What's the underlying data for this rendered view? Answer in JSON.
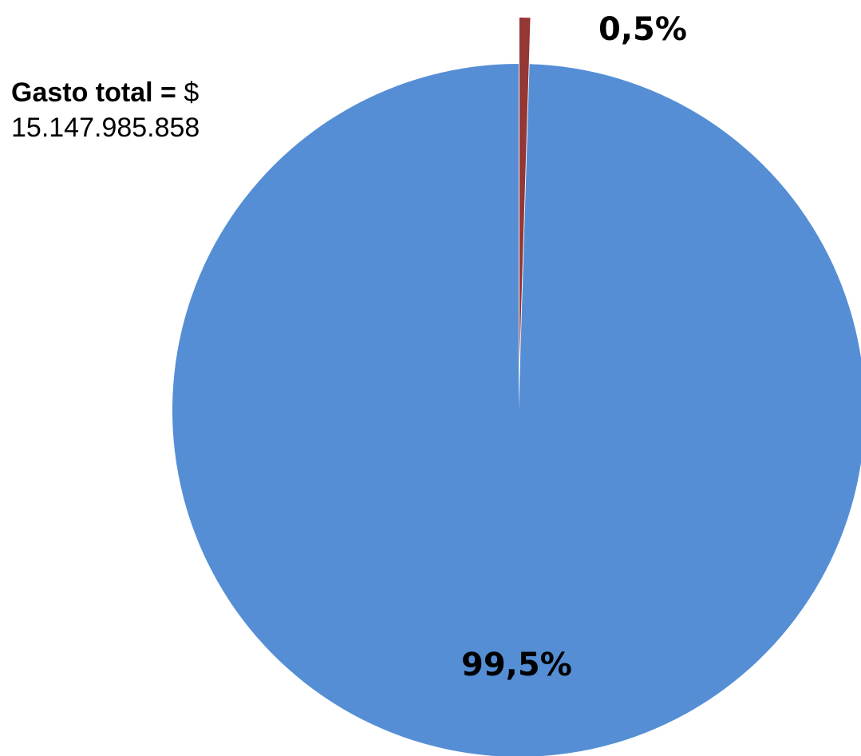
{
  "chart_data": {
    "type": "pie",
    "title": "",
    "slices": [
      {
        "value": 99.5,
        "label": "99,5%",
        "color": "#558ed5"
      },
      {
        "value": 0.5,
        "label": "0,5%",
        "color": "#953735"
      }
    ],
    "annotation": {
      "label": "Gasto total =",
      "currency": "$",
      "amount": "15.147.985.858"
    }
  }
}
